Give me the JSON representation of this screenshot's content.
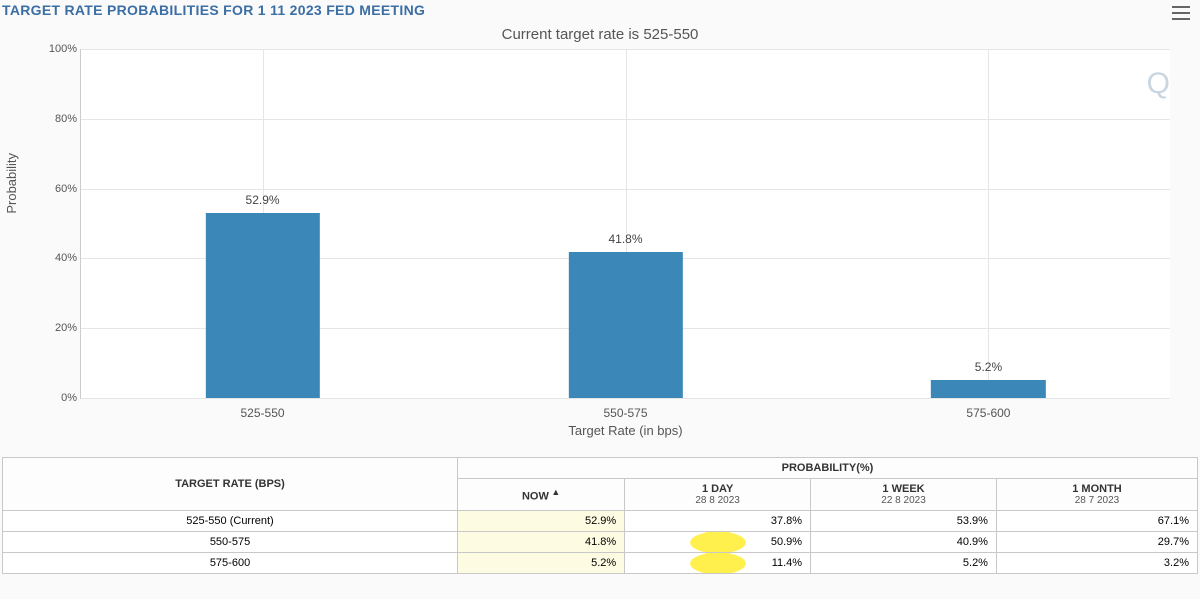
{
  "header": {
    "title": "TARGET RATE PROBABILITIES FOR 1 11 2023 FED MEETING",
    "subtitle": "Current target rate is 525-550"
  },
  "chart": {
    "type": "bar",
    "ylabel": "Probability",
    "xlabel": "Target Rate (in bps)",
    "categories": [
      "525-550",
      "550-575",
      "575-600"
    ],
    "values": [
      52.9,
      41.8,
      5.2
    ],
    "value_labels": [
      "52.9%",
      "41.8%",
      "5.2%"
    ],
    "bar_color": "#3b87b8",
    "ylim": [
      0,
      100
    ],
    "ytick_step": 20,
    "ytick_labels": [
      "0%",
      "20%",
      "40%",
      "60%",
      "80%",
      "100%"
    ],
    "background_color": "#ffffff",
    "grid_color": "#e5e5e5",
    "bar_width_pct": 10.5,
    "x_positions_pct": [
      16.67,
      50,
      83.33
    ],
    "label_fontsize": 13,
    "tick_fontsize": 11,
    "watermark": "Q"
  },
  "table": {
    "row_header": "TARGET RATE (BPS)",
    "super_header": "PROBABILITY(%)",
    "columns": [
      {
        "label": "NOW",
        "sub": "",
        "sorted": true,
        "highlight_col": true
      },
      {
        "label": "1 DAY",
        "sub": "28 8 2023",
        "sorted": false,
        "highlight_col": false
      },
      {
        "label": "1 WEEK",
        "sub": "22 8 2023",
        "sorted": false,
        "highlight_col": false
      },
      {
        "label": "1 MONTH",
        "sub": "28 7 2023",
        "sorted": false,
        "highlight_col": false
      }
    ],
    "rows": [
      {
        "label": "525-550 (Current)",
        "cells": [
          "52.9%",
          "37.8%",
          "53.9%",
          "67.1%"
        ],
        "highlight": [
          true,
          false,
          false,
          false
        ]
      },
      {
        "label": "550-575",
        "cells": [
          "41.8%",
          "50.9%",
          "40.9%",
          "29.7%"
        ],
        "highlight": [
          true,
          true,
          false,
          false
        ]
      },
      {
        "label": "575-600",
        "cells": [
          "5.2%",
          "11.4%",
          "5.2%",
          "3.2%"
        ],
        "highlight": [
          true,
          true,
          false,
          false
        ]
      }
    ]
  }
}
